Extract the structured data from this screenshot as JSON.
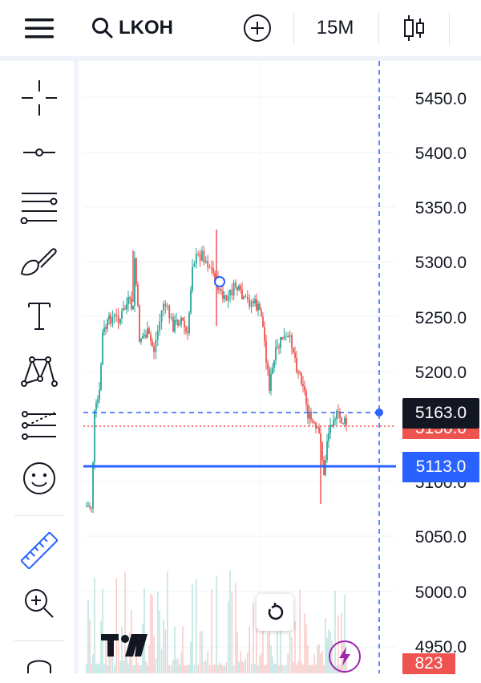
{
  "toolbar": {
    "symbol": "LKOH",
    "interval": "15M"
  },
  "price_axis": {
    "ticks": [
      "5450.0",
      "5400.0",
      "5350.0",
      "5300.0",
      "5250.0",
      "5200.0",
      "5150.0",
      "5100.0",
      "5050.0",
      "5000.0",
      "4950.0"
    ]
  },
  "price_tags": {
    "crosshair": "5163.0",
    "current": "5150.0",
    "horizontal_line": "5113.0",
    "volume": "823"
  },
  "colors": {
    "up": "#26a69a",
    "down": "#ef5350",
    "accent": "#2962ff",
    "tag_dark": "#131722"
  },
  "icons": [
    "menu-icon",
    "search-icon",
    "add-icon",
    "candles-icon",
    "crosshair-icon",
    "trend-line-icon",
    "fib-icon",
    "brush-icon",
    "text-icon",
    "pattern-icon",
    "prediction-icon",
    "emoji-icon",
    "ruler-icon",
    "zoom-in-icon",
    "reset-icon",
    "tv-logo-icon",
    "lightning-icon"
  ]
}
